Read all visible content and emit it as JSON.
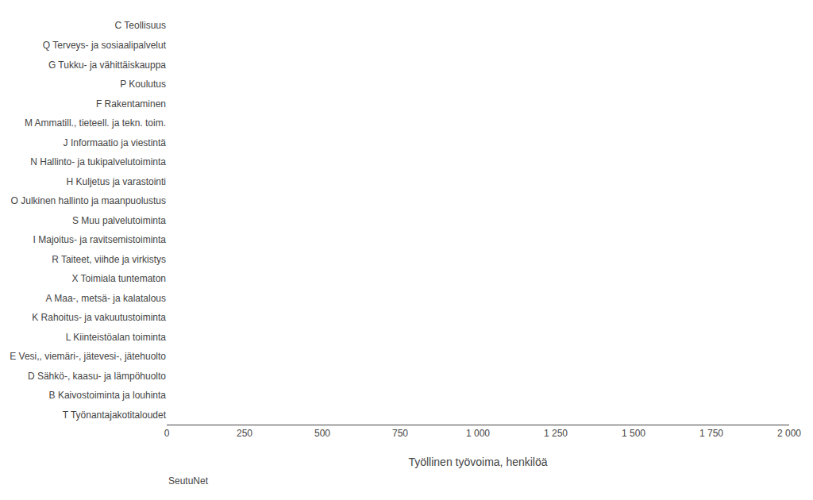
{
  "chart_data": {
    "type": "bar",
    "orientation": "horizontal",
    "categories": [
      "C Teollisuus",
      "Q Terveys- ja sosiaalipalvelut",
      "G Tukku- ja vähittäiskauppa",
      "P Koulutus",
      "F Rakentaminen",
      "M Ammatill., tieteell. ja tekn. toim.",
      "J Informaatio ja viestintä",
      "N Hallinto- ja tukipalvelutoiminta",
      "H Kuljetus ja varastointi",
      "O Julkinen hallinto ja maanpuolustus",
      "S Muu palvelutoiminta",
      "I Majoitus- ja ravitsemistoiminta",
      "R Taiteet, viihde ja virkistys",
      "X Toimiala tuntematon",
      "A Maa-, metsä- ja kalatalous",
      "K Rahoitus- ja vakuutustoiminta",
      "L Kiinteistöalan toiminta",
      "E Vesi,, viemäri-, jätevesi-, jätehuolto",
      "D Sähkö-, kaasu- ja lämpöhuolto",
      "B Kaivostoiminta ja louhinta",
      "T Työnantajakotitaloudet"
    ],
    "values": [
      0,
      0,
      0,
      0,
      0,
      0,
      0,
      0,
      0,
      0,
      0,
      0,
      0,
      0,
      0,
      0,
      0,
      0,
      0,
      0,
      0
    ],
    "xlabel": "Työllinen työvoima, henkilöä",
    "xlim": [
      0,
      2000
    ],
    "xticks": [
      0,
      250,
      500,
      750,
      {
        "value": 1000,
        "label": "1 000"
      },
      {
        "value": 1250,
        "label": "1 250"
      },
      {
        "value": 1500,
        "label": "1 500"
      },
      {
        "value": 1750,
        "label": "1 750"
      },
      {
        "value": 2000,
        "label": "2 000"
      }
    ],
    "annotations": [
      "SeutuNet"
    ],
    "grid": false
  }
}
